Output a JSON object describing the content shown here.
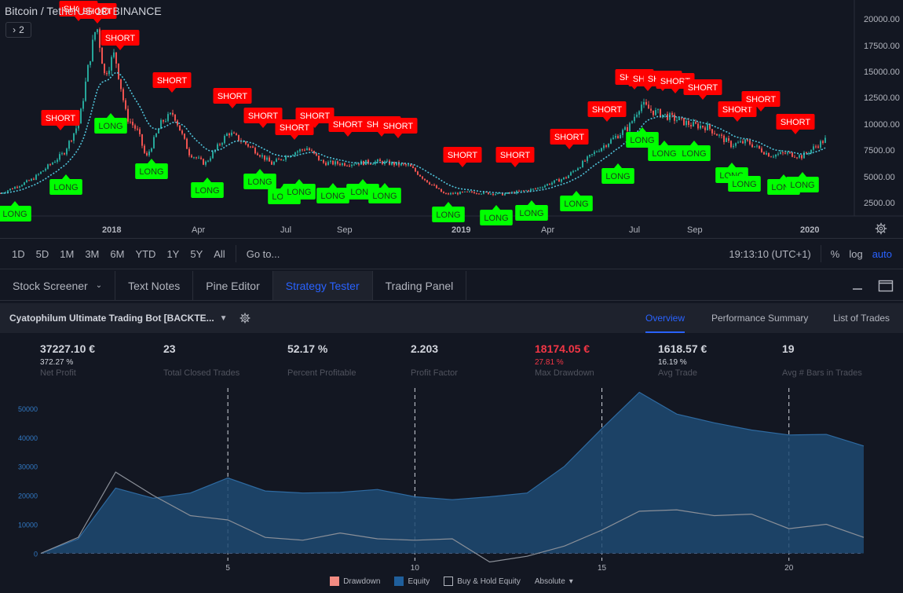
{
  "chart": {
    "title": "Bitcoin / TetherUS  1D  BINANCE",
    "indicator_count": "2",
    "price_axis": [
      "20000.00",
      "17500.00",
      "15000.00",
      "12500.00",
      "10000.00",
      "7500.00",
      "5000.00",
      "2500.00"
    ],
    "time_axis": [
      "2018",
      "Apr",
      "Jul",
      "Sep",
      "2019",
      "Apr",
      "Jul",
      "Sep",
      "2020"
    ],
    "signals": {
      "long_label": "LONG",
      "short_label": "SHORT"
    },
    "colors": {
      "short": "#ff0000",
      "long": "#00ff00",
      "ma_line": "#4fc3d9",
      "up": "#26a69a",
      "down": "#ef5350"
    }
  },
  "range_bar": {
    "ranges": [
      "1D",
      "5D",
      "1M",
      "3M",
      "6M",
      "YTD",
      "1Y",
      "5Y",
      "All"
    ],
    "goto": "Go to...",
    "clock": "19:13:10 (UTC+1)",
    "percent": "%",
    "log": "log",
    "auto": "auto"
  },
  "bottom_tabs": [
    "Stock Screener",
    "Text Notes",
    "Pine Editor",
    "Strategy Tester",
    "Trading Panel"
  ],
  "strategy": {
    "name": "Cyatophilum Ultimate Trading Bot [BACKTE...",
    "tabs": [
      "Overview",
      "Performance Summary",
      "List of Trades"
    ]
  },
  "metrics": [
    {
      "value": "37227.10 €",
      "sub": "372.27 %",
      "label": "Net Profit"
    },
    {
      "value": "23",
      "sub": "",
      "label": "Total Closed Trades"
    },
    {
      "value": "52.17 %",
      "sub": "",
      "label": "Percent Profitable"
    },
    {
      "value": "2.203",
      "sub": "",
      "label": "Profit Factor"
    },
    {
      "value": "18174.05 €",
      "sub": "27.81 %",
      "label": "Max Drawdown"
    },
    {
      "value": "1618.57 €",
      "sub": "16.19 %",
      "label": "Avg Trade"
    },
    {
      "value": "19",
      "sub": "",
      "label": "Avg # Bars in Trades"
    }
  ],
  "chart_data": {
    "type": "area",
    "x": [
      0,
      1,
      2,
      3,
      4,
      5,
      6,
      7,
      8,
      9,
      10,
      11,
      12,
      13,
      14,
      15,
      16,
      17,
      18,
      19,
      20,
      21,
      22
    ],
    "series": [
      {
        "name": "Equity",
        "values": [
          0,
          5000,
          22500,
          19000,
          20800,
          26000,
          21500,
          20800,
          21000,
          22000,
          19500,
          18500,
          19500,
          20800,
          30000,
          43000,
          55500,
          48000,
          45000,
          42500,
          40800,
          41000,
          37000
        ]
      },
      {
        "name": "Buy & Hold Equity",
        "values": [
          0,
          5500,
          28000,
          20000,
          13000,
          11500,
          5500,
          4500,
          7000,
          5000,
          4500,
          5000,
          -3000,
          -1000,
          2500,
          8000,
          14500,
          15000,
          13000,
          13500,
          8500,
          10000,
          5500
        ]
      }
    ],
    "y_ticks": [
      0,
      10000,
      20000,
      30000,
      40000,
      50000
    ],
    "x_ticks": [
      5,
      10,
      15,
      20
    ],
    "ylim": [
      -1500,
      57000
    ],
    "xlim": [
      0,
      22
    ],
    "grid": "vertical dashed at x ticks",
    "legend": [
      "Drawdown",
      "Equity",
      "Buy & Hold Equity",
      "Absolute"
    ],
    "legend_placement": "bottom-center",
    "colors": {
      "equity_fill": "#1e4a72",
      "equity_line": "#2e6aa1",
      "bh_line": "#8a8f98",
      "drawdown": "#f28b82"
    }
  }
}
